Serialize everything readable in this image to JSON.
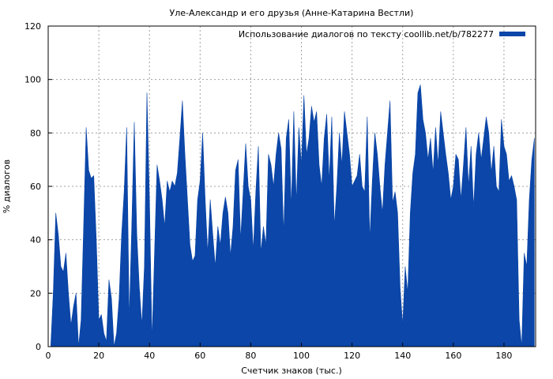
{
  "chart_data": {
    "type": "area",
    "title": "Уле-Александр и его друзья (Анне-Катарина Вестли)",
    "xlabel": "Счетчик знаков (тыс.)",
    "ylabel": "% диалогов",
    "xlim": [
      0,
      192.5
    ],
    "ylim": [
      0,
      120
    ],
    "xticks": [
      0,
      20,
      40,
      60,
      80,
      100,
      120,
      140,
      160,
      180
    ],
    "yticks": [
      0,
      20,
      40,
      60,
      80,
      100,
      120
    ],
    "grid": true,
    "legend_position": "top-right",
    "series": [
      {
        "name": "Использование диалогов по тексту coollib.net/b/782277",
        "color": "#0b46a8",
        "x": [
          0,
          1,
          2,
          3,
          4,
          5,
          6,
          7,
          8,
          9,
          10,
          11,
          12,
          13,
          14,
          15,
          16,
          17,
          18,
          19,
          20,
          21,
          22,
          23,
          24,
          25,
          26,
          27,
          28,
          29,
          30,
          31,
          32,
          33,
          34,
          35,
          36,
          37,
          38,
          39,
          40,
          41,
          42,
          43,
          44,
          45,
          46,
          47,
          48,
          49,
          50,
          51,
          52,
          53,
          54,
          55,
          56,
          57,
          58,
          59,
          60,
          61,
          62,
          63,
          64,
          65,
          66,
          67,
          68,
          69,
          70,
          71,
          72,
          73,
          74,
          75,
          76,
          77,
          78,
          79,
          80,
          81,
          82,
          83,
          84,
          85,
          86,
          87,
          88,
          89,
          90,
          91,
          92,
          93,
          94,
          95,
          96,
          97,
          98,
          99,
          100,
          101,
          102,
          103,
          104,
          105,
          106,
          107,
          108,
          109,
          110,
          111,
          112,
          113,
          114,
          115,
          116,
          117,
          118,
          119,
          120,
          121,
          122,
          123,
          124,
          125,
          126,
          127,
          128,
          129,
          130,
          131,
          132,
          133,
          134,
          135,
          136,
          137,
          138,
          139,
          140,
          141,
          142,
          143,
          144,
          145,
          146,
          147,
          148,
          149,
          150,
          151,
          152,
          153,
          154,
          155,
          156,
          157,
          158,
          159,
          160,
          161,
          162,
          163,
          164,
          165,
          166,
          167,
          168,
          169,
          170,
          171,
          172,
          173,
          174,
          175,
          176,
          177,
          178,
          179,
          180,
          181,
          182,
          183,
          184,
          185,
          186,
          187,
          188,
          189,
          190,
          191,
          192
        ],
        "values": [
          0,
          0,
          20,
          50,
          42,
          30,
          28,
          35,
          20,
          8,
          15,
          20,
          0,
          10,
          45,
          82,
          66,
          63,
          64,
          40,
          10,
          12,
          5,
          2,
          25,
          18,
          0,
          5,
          18,
          42,
          58,
          82,
          10,
          45,
          84,
          42,
          22,
          8,
          30,
          95,
          55,
          2,
          35,
          68,
          62,
          55,
          45,
          62,
          58,
          62,
          60,
          65,
          78,
          92,
          72,
          55,
          38,
          32,
          34,
          55,
          62,
          80,
          55,
          35,
          55,
          42,
          30,
          45,
          38,
          50,
          56,
          50,
          34,
          45,
          66,
          70,
          40,
          58,
          76,
          60,
          55,
          36,
          58,
          75,
          35,
          45,
          38,
          72,
          68,
          60,
          72,
          80,
          74,
          42,
          78,
          85,
          52,
          88,
          54,
          82,
          68,
          94,
          72,
          78,
          90,
          84,
          88,
          68,
          60,
          78,
          87,
          62,
          86,
          45,
          60,
          80,
          68,
          88,
          80,
          72,
          60,
          62,
          64,
          72,
          60,
          58,
          86,
          40,
          62,
          80,
          72,
          60,
          50,
          68,
          80,
          92,
          54,
          58,
          50,
          22,
          8,
          30,
          20,
          50,
          65,
          72,
          95,
          98,
          85,
          80,
          70,
          78,
          65,
          82,
          68,
          88,
          80,
          72,
          65,
          55,
          60,
          72,
          70,
          55,
          68,
          82,
          60,
          75,
          52,
          72,
          80,
          70,
          78,
          86,
          80,
          65,
          75,
          60,
          58,
          85,
          75,
          72,
          62,
          64,
          60,
          55,
          10,
          0,
          35,
          30,
          55,
          70,
          78
        ]
      }
    ]
  }
}
